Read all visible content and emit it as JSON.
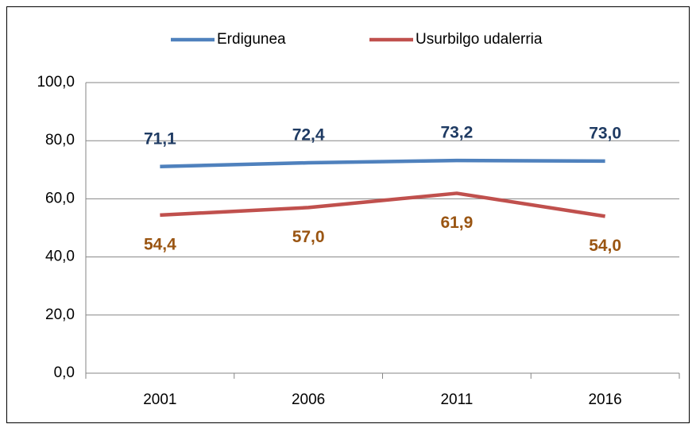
{
  "chart_data": {
    "type": "line",
    "categories": [
      "2001",
      "2006",
      "2011",
      "2016"
    ],
    "series": [
      {
        "name": "Erdigunea",
        "color": "#4f81bd",
        "label_color": "#1f3b63",
        "values": [
          71.1,
          72.4,
          73.2,
          73.0
        ],
        "value_labels": [
          "71,1",
          "72,4",
          "73,2",
          "73,0"
        ]
      },
      {
        "name": "Usurbilgo udalerria",
        "color": "#c0504d",
        "label_color": "#9a5512",
        "values": [
          54.4,
          57.0,
          61.9,
          54.0
        ],
        "value_labels": [
          "54,4",
          "57,0",
          "61,9",
          "54,0"
        ]
      }
    ],
    "ylim": [
      0,
      100
    ],
    "yticks": [
      {
        "value": 0,
        "label": "0,0"
      },
      {
        "value": 20,
        "label": "20,0"
      },
      {
        "value": 40,
        "label": "40,0"
      },
      {
        "value": 60,
        "label": "60,0"
      },
      {
        "value": 80,
        "label": "80,0"
      },
      {
        "value": 100,
        "label": "100,0"
      }
    ],
    "grid": true,
    "legend": "top"
  }
}
